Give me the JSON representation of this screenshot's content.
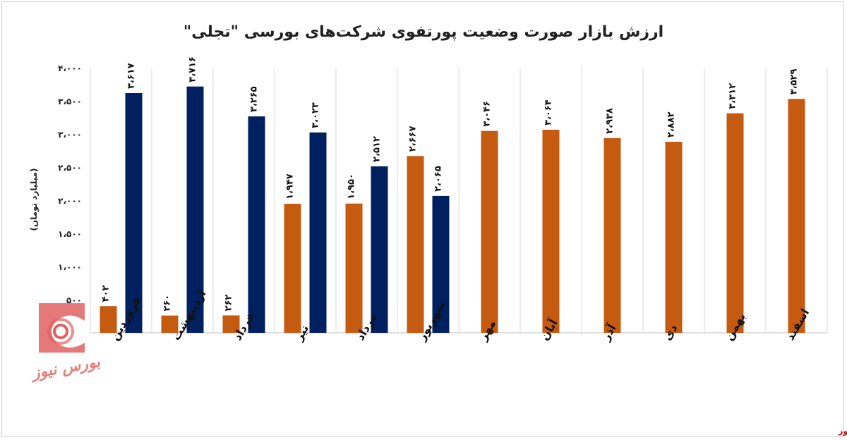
{
  "chart_data": {
    "type": "bar",
    "title": "ارزش بازار صورت وضعیت پورتفوی شرکت‌های بورسی \"تجلی\"",
    "ylabel": "(میلیارد تومان)",
    "ylim": [
      0,
      4000
    ],
    "yticks": [
      0,
      500,
      1000,
      1500,
      2000,
      2500,
      3000,
      3500,
      4000
    ],
    "ytick_labels": [
      "",
      "۵۰۰",
      "۱،۰۰۰",
      "۱،۵۰۰",
      "۲،۰۰۰",
      "۲،۵۰۰",
      "۳،۰۰۰",
      "۳،۵۰۰",
      "۴،۰۰۰"
    ],
    "categories": [
      "فروردین",
      "اردیبهشت",
      "خرداد",
      "تیر",
      "مرداد",
      "شهریور",
      "مهر",
      "آبان",
      "آذر",
      "دی",
      "بهمن",
      "اسفند"
    ],
    "series": [
      {
        "color": "#c55a11",
        "values": [
          402,
          260,
          262,
          1947,
          1950,
          2667,
          3046,
          3064,
          2938,
          2882,
          3312,
          3529
        ],
        "labels": [
          "۴۰۲",
          "۲۶۰",
          "۲۶۲",
          "۱،۹۴۷",
          "۱،۹۵۰",
          "۲،۶۶۷",
          "۳،۰۴۶",
          "۳،۰۶۴",
          "۲،۹۳۸",
          "۲،۸۸۲",
          "۳،۳۱۲",
          "۳،۵۲۹"
        ]
      },
      {
        "color": "#002060",
        "values": [
          3617,
          3716,
          3265,
          3023,
          2512,
          2065,
          null,
          null,
          null,
          null,
          null,
          null
        ],
        "labels": [
          "۳،۶۱۷",
          "۳،۷۱۶",
          "۳،۲۶۵",
          "۳،۰۲۳",
          "۲،۵۱۲",
          "۲،۰۶۵",
          "",
          "",
          "",
          "",
          "",
          ""
        ]
      }
    ],
    "grid": "vertical-separators",
    "legend": "none"
  },
  "watermark": {
    "text": "بورس نیوز",
    "color": "#e06060"
  },
  "source": "بورس نیوز"
}
